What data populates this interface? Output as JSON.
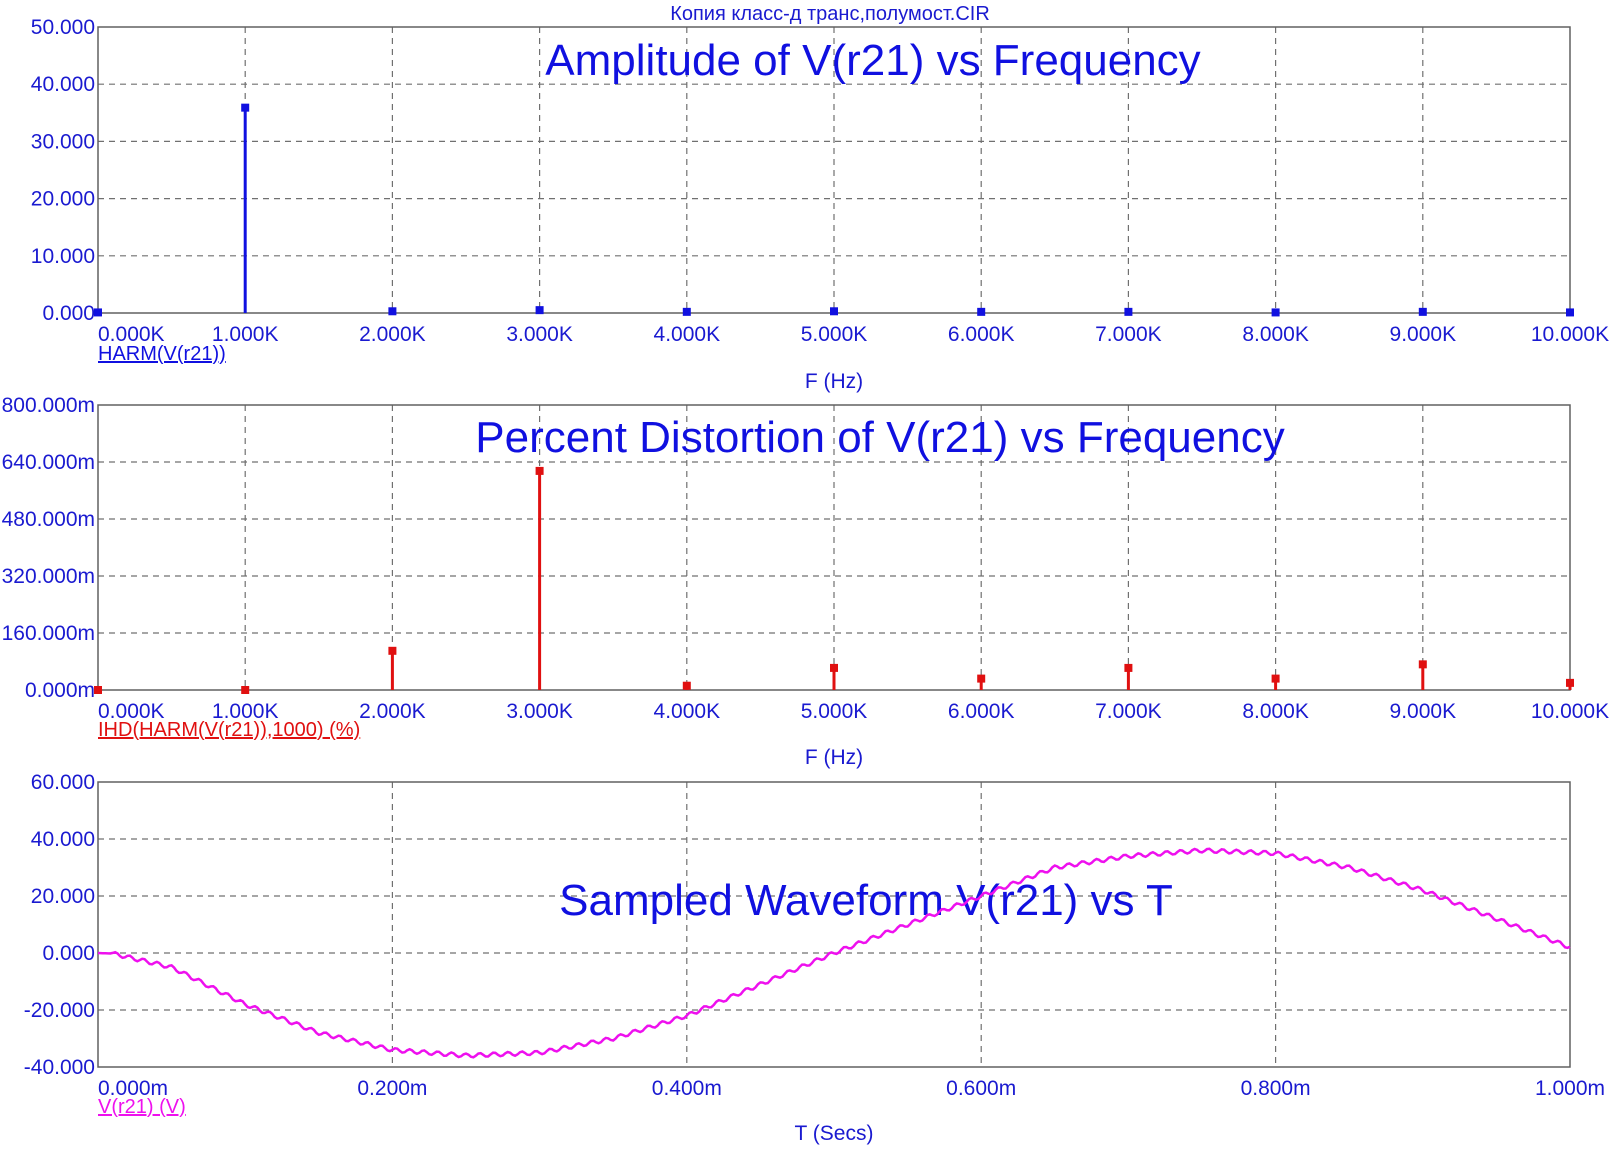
{
  "window_title": "Копия класс-д транс,полумост.CIR",
  "chart_data": [
    {
      "type": "bar",
      "title": "Amplitude of V(r21) vs Frequency",
      "xlabel": "F (Hz)",
      "trace_label": "HARM(V(r21))",
      "color": "#1010e0",
      "xlim": [
        0,
        10000
      ],
      "ylim": [
        0,
        50
      ],
      "x_ticks": [
        "0.000K",
        "1.000K",
        "2.000K",
        "3.000K",
        "4.000K",
        "5.000K",
        "6.000K",
        "7.000K",
        "8.000K",
        "9.000K",
        "10.000K"
      ],
      "y_ticks": [
        "0.000",
        "10.000",
        "20.000",
        "30.000",
        "40.000",
        "50.000"
      ],
      "x": [
        0,
        1000,
        2000,
        3000,
        4000,
        5000,
        6000,
        7000,
        8000,
        9000,
        10000
      ],
      "values": [
        0.1,
        35.9,
        0.3,
        0.5,
        0.2,
        0.3,
        0.2,
        0.2,
        0.1,
        0.2,
        0.1
      ]
    },
    {
      "type": "bar",
      "title": "Percent Distortion of V(r21) vs Frequency",
      "xlabel": "F (Hz)",
      "trace_label": "IHD(HARM(V(r21)),1000) (%)",
      "color": "#e01010",
      "xlim": [
        0,
        10000
      ],
      "ylim": [
        0,
        800
      ],
      "y_unit": "m",
      "x_ticks": [
        "0.000K",
        "1.000K",
        "2.000K",
        "3.000K",
        "4.000K",
        "5.000K",
        "6.000K",
        "7.000K",
        "8.000K",
        "9.000K",
        "10.000K"
      ],
      "y_ticks": [
        "0.000m",
        "160.000m",
        "320.000m",
        "480.000m",
        "640.000m",
        "800.000m"
      ],
      "x": [
        0,
        1000,
        2000,
        3000,
        4000,
        5000,
        6000,
        7000,
        8000,
        9000,
        10000
      ],
      "values": [
        0,
        0,
        110,
        615,
        12,
        62,
        32,
        62,
        32,
        72,
        20
      ]
    },
    {
      "type": "line",
      "title": "Sampled Waveform  V(r21) vs T",
      "xlabel": "T (Secs)",
      "trace_label": "V(r21) (V)",
      "color": "#ee10ee",
      "xlim": [
        0,
        1
      ],
      "ylim": [
        -40,
        60
      ],
      "x_unit": "m",
      "x_ticks": [
        "0.000m",
        "0.200m",
        "0.400m",
        "0.600m",
        "0.800m",
        "1.000m"
      ],
      "y_ticks": [
        "-40.000",
        "-20.000",
        "0.000",
        "20.000",
        "40.000",
        "60.000"
      ],
      "x": [
        0,
        0.01,
        0.05,
        0.1,
        0.15,
        0.2,
        0.25,
        0.3,
        0.35,
        0.4,
        0.45,
        0.5,
        0.55,
        0.6,
        0.65,
        0.7,
        0.75,
        0.8,
        0.85,
        0.9,
        0.95,
        1.0
      ],
      "values": [
        0,
        -0.2,
        -5,
        -18,
        -28,
        -34,
        -36,
        -35,
        -30,
        -22,
        -11,
        0,
        10,
        20,
        30,
        34,
        36,
        35,
        30,
        22,
        12,
        2
      ]
    }
  ]
}
